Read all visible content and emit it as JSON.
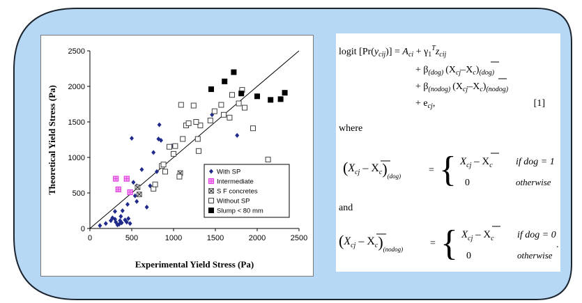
{
  "colors": {
    "slide_fill": "#b7d8f5",
    "slide_border": "#1c2430",
    "with_sp": "#1f2a8a",
    "intermediate": "#e040e0",
    "sf_concretes": "#9a9a9a",
    "without_sp": "#404040",
    "slump": "#000000"
  },
  "chart_data": {
    "type": "scatter",
    "xlabel": "Experimental Yield Stress (Pa)",
    "ylabel": "Theoretical Yield Stress (Pa)",
    "xlim": [
      0,
      2500
    ],
    "ylim": [
      0,
      2500
    ],
    "x_ticks": [
      "0",
      "500",
      "1000",
      "1500",
      "2000",
      "2500"
    ],
    "y_ticks": [
      "0",
      "500",
      "1000",
      "1500",
      "2000",
      "2500"
    ],
    "grid": false,
    "legend_position": "bottom-right",
    "reference_line": "y = x",
    "series": [
      {
        "name": "With SP",
        "marker": "diamond",
        "points": [
          [
            120,
            40
          ],
          [
            190,
            70
          ],
          [
            250,
            110
          ],
          [
            270,
            150
          ],
          [
            300,
            130
          ],
          [
            310,
            90
          ],
          [
            330,
            50
          ],
          [
            350,
            60
          ],
          [
            360,
            110
          ],
          [
            370,
            170
          ],
          [
            380,
            80
          ],
          [
            420,
            120
          ],
          [
            440,
            90
          ],
          [
            460,
            140
          ],
          [
            480,
            70
          ],
          [
            390,
            250
          ],
          [
            450,
            340
          ],
          [
            500,
            1270
          ],
          [
            520,
            650
          ],
          [
            540,
            460
          ],
          [
            560,
            600
          ],
          [
            600,
            480
          ],
          [
            620,
            830
          ],
          [
            680,
            300
          ],
          [
            720,
            600
          ],
          [
            760,
            1070
          ],
          [
            820,
            1260
          ],
          [
            830,
            1460
          ],
          [
            850,
            1240
          ],
          [
            980,
            1160
          ],
          [
            1460,
            1600
          ],
          [
            1760,
            1310
          ],
          [
            300,
            240
          ],
          [
            560,
            380
          ],
          [
            800,
            800
          ]
        ]
      },
      {
        "name": "Intermediate",
        "marker": "square-plus",
        "points": [
          [
            310,
            700
          ],
          [
            440,
            700
          ],
          [
            340,
            550
          ],
          [
            480,
            510
          ]
        ]
      },
      {
        "name": "SF concretes",
        "marker": "square-x",
        "points": [
          [
            570,
            580
          ],
          [
            590,
            480
          ],
          [
            1080,
            780
          ]
        ]
      },
      {
        "name": "Without SP",
        "marker": "open-square",
        "points": [
          [
            760,
            560
          ],
          [
            780,
            620
          ],
          [
            900,
            800
          ],
          [
            950,
            1150
          ],
          [
            1000,
            1050
          ],
          [
            1020,
            1160
          ],
          [
            1070,
            730
          ],
          [
            1090,
            1740
          ],
          [
            1110,
            1260
          ],
          [
            1150,
            1450
          ],
          [
            1180,
            1480
          ],
          [
            1240,
            1730
          ],
          [
            1290,
            1260
          ],
          [
            1300,
            1090
          ],
          [
            1320,
            1450
          ],
          [
            1440,
            1520
          ],
          [
            1490,
            1650
          ],
          [
            1570,
            1740
          ],
          [
            1600,
            1600
          ],
          [
            1670,
            1560
          ],
          [
            1700,
            1880
          ],
          [
            1780,
            1760
          ],
          [
            1820,
            1950
          ],
          [
            1850,
            1700
          ],
          [
            1950,
            1410
          ],
          [
            2130,
            970
          ],
          [
            860,
            880
          ],
          [
            880,
            900
          ],
          [
            1270,
            1500
          ]
        ]
      },
      {
        "name": "Slump < 80 mm",
        "marker": "filled-square",
        "points": [
          [
            1450,
            1960
          ],
          [
            1610,
            2070
          ],
          [
            1720,
            2200
          ],
          [
            1810,
            1900
          ],
          [
            2000,
            1860
          ],
          [
            2160,
            1810
          ],
          [
            2280,
            1820
          ],
          [
            2330,
            1910
          ]
        ]
      }
    ],
    "legend": [
      {
        "label": "With SP",
        "marker": "diamond"
      },
      {
        "label": "Intermediate",
        "marker": "square-plus"
      },
      {
        "label": "S F concretes",
        "marker": "square-x"
      },
      {
        "label": "Without SP",
        "marker": "open-square"
      },
      {
        "label": "Slump < 80 mm",
        "marker": "filled-square"
      }
    ]
  },
  "formula": {
    "eq1_lhs": "logit [Pr(",
    "eq1_y": "y",
    "eq1_ysub": "cij",
    "eq1_rhs_close": ")] = ",
    "eq1_A": "A",
    "eq1_Asub": "ci",
    "eq1_plus_gamma": " + γ",
    "eq1_gsub": "1",
    "eq1_T": "T",
    "eq1_z": "z",
    "eq1_zsub": "cij",
    "eq2_beta": "+ β",
    "eq2_sub": "(dog)",
    "eq2_term": "(X",
    "eq2_cj": "cj",
    "eq2_minus": "–X",
    "eq2_c": "c",
    "eq2_close": ")",
    "eq2_tail": "(dog)",
    "eq3_beta": "+ β",
    "eq3_sub": "(nodog)",
    "eq3_tail": "(nodog)",
    "eq4": "+ e",
    "eq4_sub": "cj",
    "eq4_comma": ",",
    "eq_number": "[1]",
    "where": "where",
    "and": "and",
    "case_cond1": "if dog = 1",
    "case_cond0": "if dog = 0",
    "case_zero": "0",
    "case_otherwise": "otherwise",
    "case_dog_sub": "(dog)",
    "case_nodog_sub": "(nodog)",
    "period": "."
  }
}
